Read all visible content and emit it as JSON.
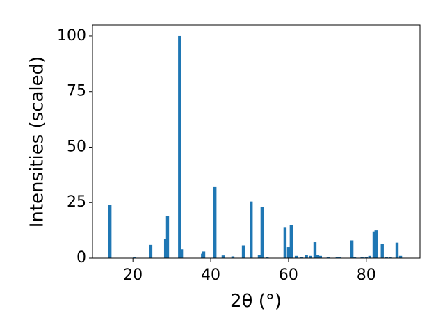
{
  "chart_data": {
    "type": "bar",
    "xlabel": "2θ (°)",
    "ylabel": "Intensities (scaled)",
    "color": "#1f77b4",
    "x": [
      14.1,
      20.4,
      24.6,
      28.4,
      28.9,
      32.0,
      32.5,
      37.9,
      38.2,
      41.1,
      43.2,
      45.7,
      48.4,
      50.4,
      52.5,
      53.2,
      54.5,
      59.1,
      60.0,
      60.7,
      62.0,
      63.4,
      64.6,
      65.7,
      66.8,
      67.5,
      68.2,
      70.2,
      72.5,
      73.2,
      76.3,
      77.0,
      78.9,
      80.0,
      80.9,
      82.0,
      82.5,
      84.1,
      85.2,
      86.2,
      87.9,
      88.8
    ],
    "values": [
      24,
      0.5,
      6,
      8.5,
      19,
      100,
      4,
      2,
      3,
      32,
      1.2,
      0.8,
      5.8,
      25.5,
      1.5,
      23,
      0.5,
      14,
      5,
      15,
      1,
      0.5,
      1.5,
      1,
      7.2,
      1.5,
      1,
      0.5,
      0.5,
      0.5,
      8,
      0.5,
      0.5,
      0.5,
      1,
      12,
      12.5,
      6.3,
      0.5,
      0.5,
      7,
      1
    ],
    "xlim": [
      9.6,
      93.8
    ],
    "xticks": [
      20,
      40,
      60,
      80
    ],
    "ylim": [
      0,
      105
    ],
    "yticks": [
      0,
      25,
      50,
      75,
      100
    ]
  }
}
